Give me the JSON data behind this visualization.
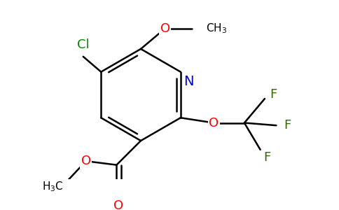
{
  "background_color": "#ffffff",
  "atom_colors": {
    "N": "#0000cc",
    "O": "#ff0000",
    "Cl": "#008800",
    "F": "#336600",
    "C": "#000000"
  },
  "font_size_atoms": 13,
  "font_size_small": 11,
  "figsize": [
    4.84,
    3.0
  ],
  "dpi": 100,
  "lw": 1.8
}
